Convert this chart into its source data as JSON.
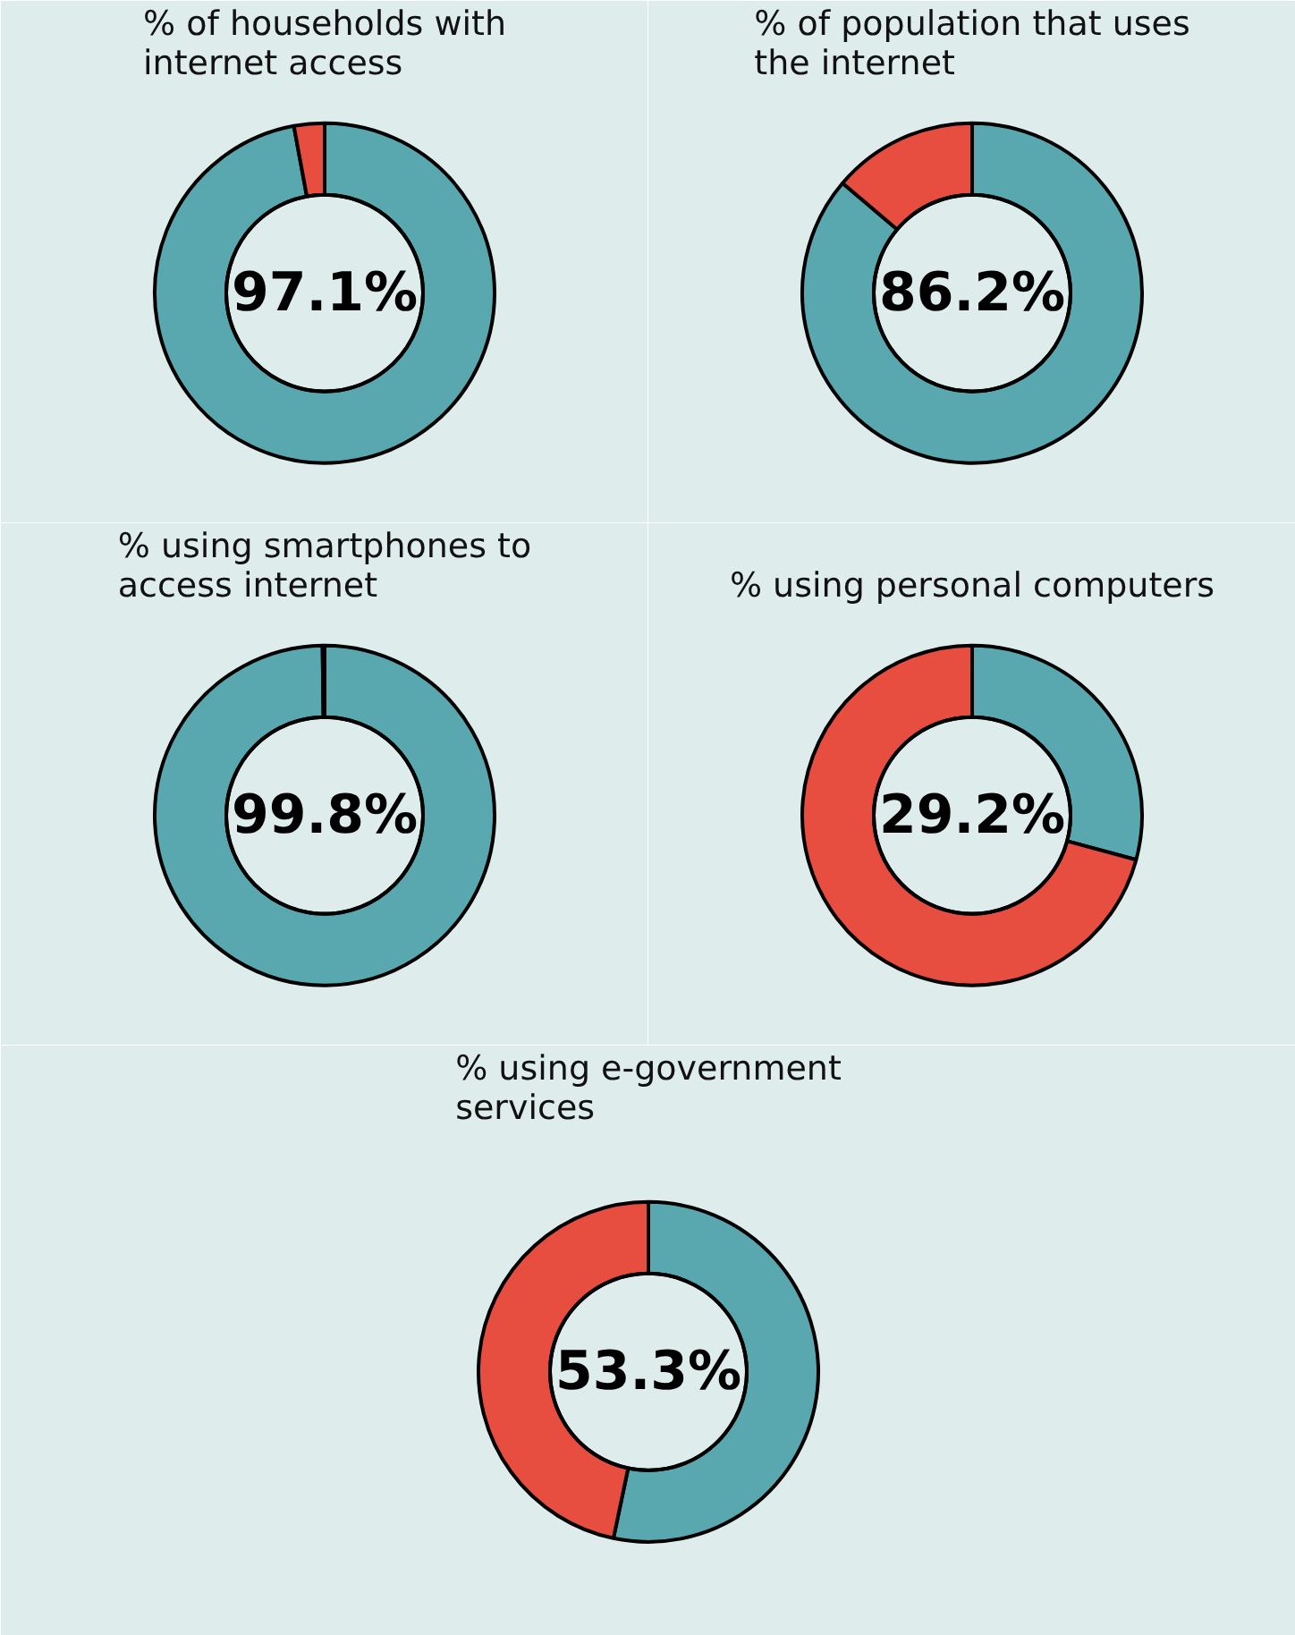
{
  "chart_data": [
    {
      "type": "donut",
      "title": "% of households with internet access",
      "categories": [
        null,
        null
      ],
      "values": [
        97.1,
        2.9
      ],
      "colors": [
        "#59a8b0",
        "#e84e3f"
      ],
      "value_labels": [
        "97.1%",
        null
      ]
    },
    {
      "type": "donut",
      "title": "% of population that uses the internet",
      "categories": [
        null,
        null
      ],
      "values": [
        86.2,
        13.8
      ],
      "colors": [
        "#59a8b0",
        "#e84e3f"
      ],
      "value_labels": [
        "86.2%",
        null
      ]
    },
    {
      "type": "donut",
      "title": "% using smartphones to access internet",
      "categories": [
        null,
        null
      ],
      "values": [
        99.8,
        0.2
      ],
      "colors": [
        "#59a8b0",
        "#e84e3f"
      ],
      "value_labels": [
        "99.8%",
        null
      ]
    },
    {
      "type": "donut",
      "title": "% using personal computers",
      "categories": [
        null,
        null
      ],
      "values": [
        29.2,
        70.8
      ],
      "colors": [
        "#59a8b0",
        "#e84e3f"
      ],
      "value_labels": [
        "29.2%",
        null
      ]
    },
    {
      "type": "donut",
      "title": "% using e-government services",
      "categories": [
        null,
        null
      ],
      "values": [
        53.3,
        46.7
      ],
      "colors": [
        "#59a8b0",
        "#e84e3f"
      ],
      "value_labels": [
        "53.3%",
        null
      ]
    }
  ]
}
